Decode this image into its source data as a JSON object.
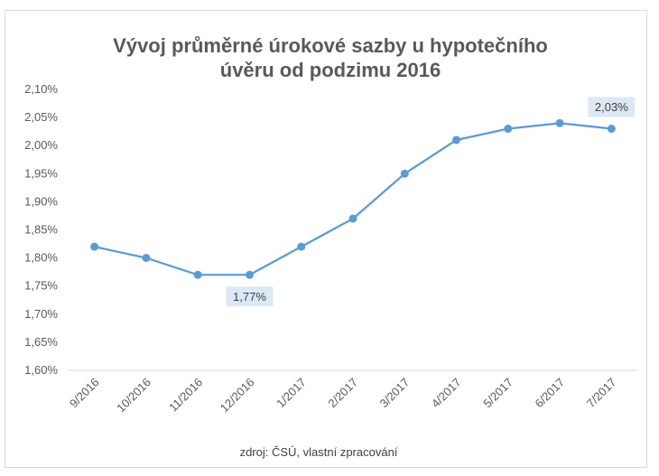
{
  "chart_data": {
    "type": "line",
    "title_lines": [
      "Vývoj průměrné úrokové sazby u hypotečního",
      "úvěru od podzimu 2016"
    ],
    "categories": [
      "9/2016",
      "10/2016",
      "11/2016",
      "12/2016",
      "1/2017",
      "2/2017",
      "3/2017",
      "4/2017",
      "5/2017",
      "6/2017",
      "7/2017"
    ],
    "series": [
      {
        "values": [
          1.82,
          1.8,
          1.77,
          1.77,
          1.82,
          1.87,
          1.95,
          2.01,
          2.03,
          2.04,
          2.03
        ]
      }
    ],
    "y_ticks": [
      "1,60%",
      "1,65%",
      "1,70%",
      "1,75%",
      "1,80%",
      "1,85%",
      "1,90%",
      "1,95%",
      "2,00%",
      "2,05%",
      "2,10%"
    ],
    "ylim": [
      1.6,
      2.1
    ],
    "grid": false,
    "line_color": "#5b9bd5",
    "label_bg": "#dce9f5",
    "annotations": [
      {
        "index": 3,
        "text": "1,77%",
        "position": "below"
      },
      {
        "index": 10,
        "text": "2,03%",
        "position": "above"
      }
    ],
    "source": "zdroj: ČSÚ, vlastní zpracování"
  }
}
